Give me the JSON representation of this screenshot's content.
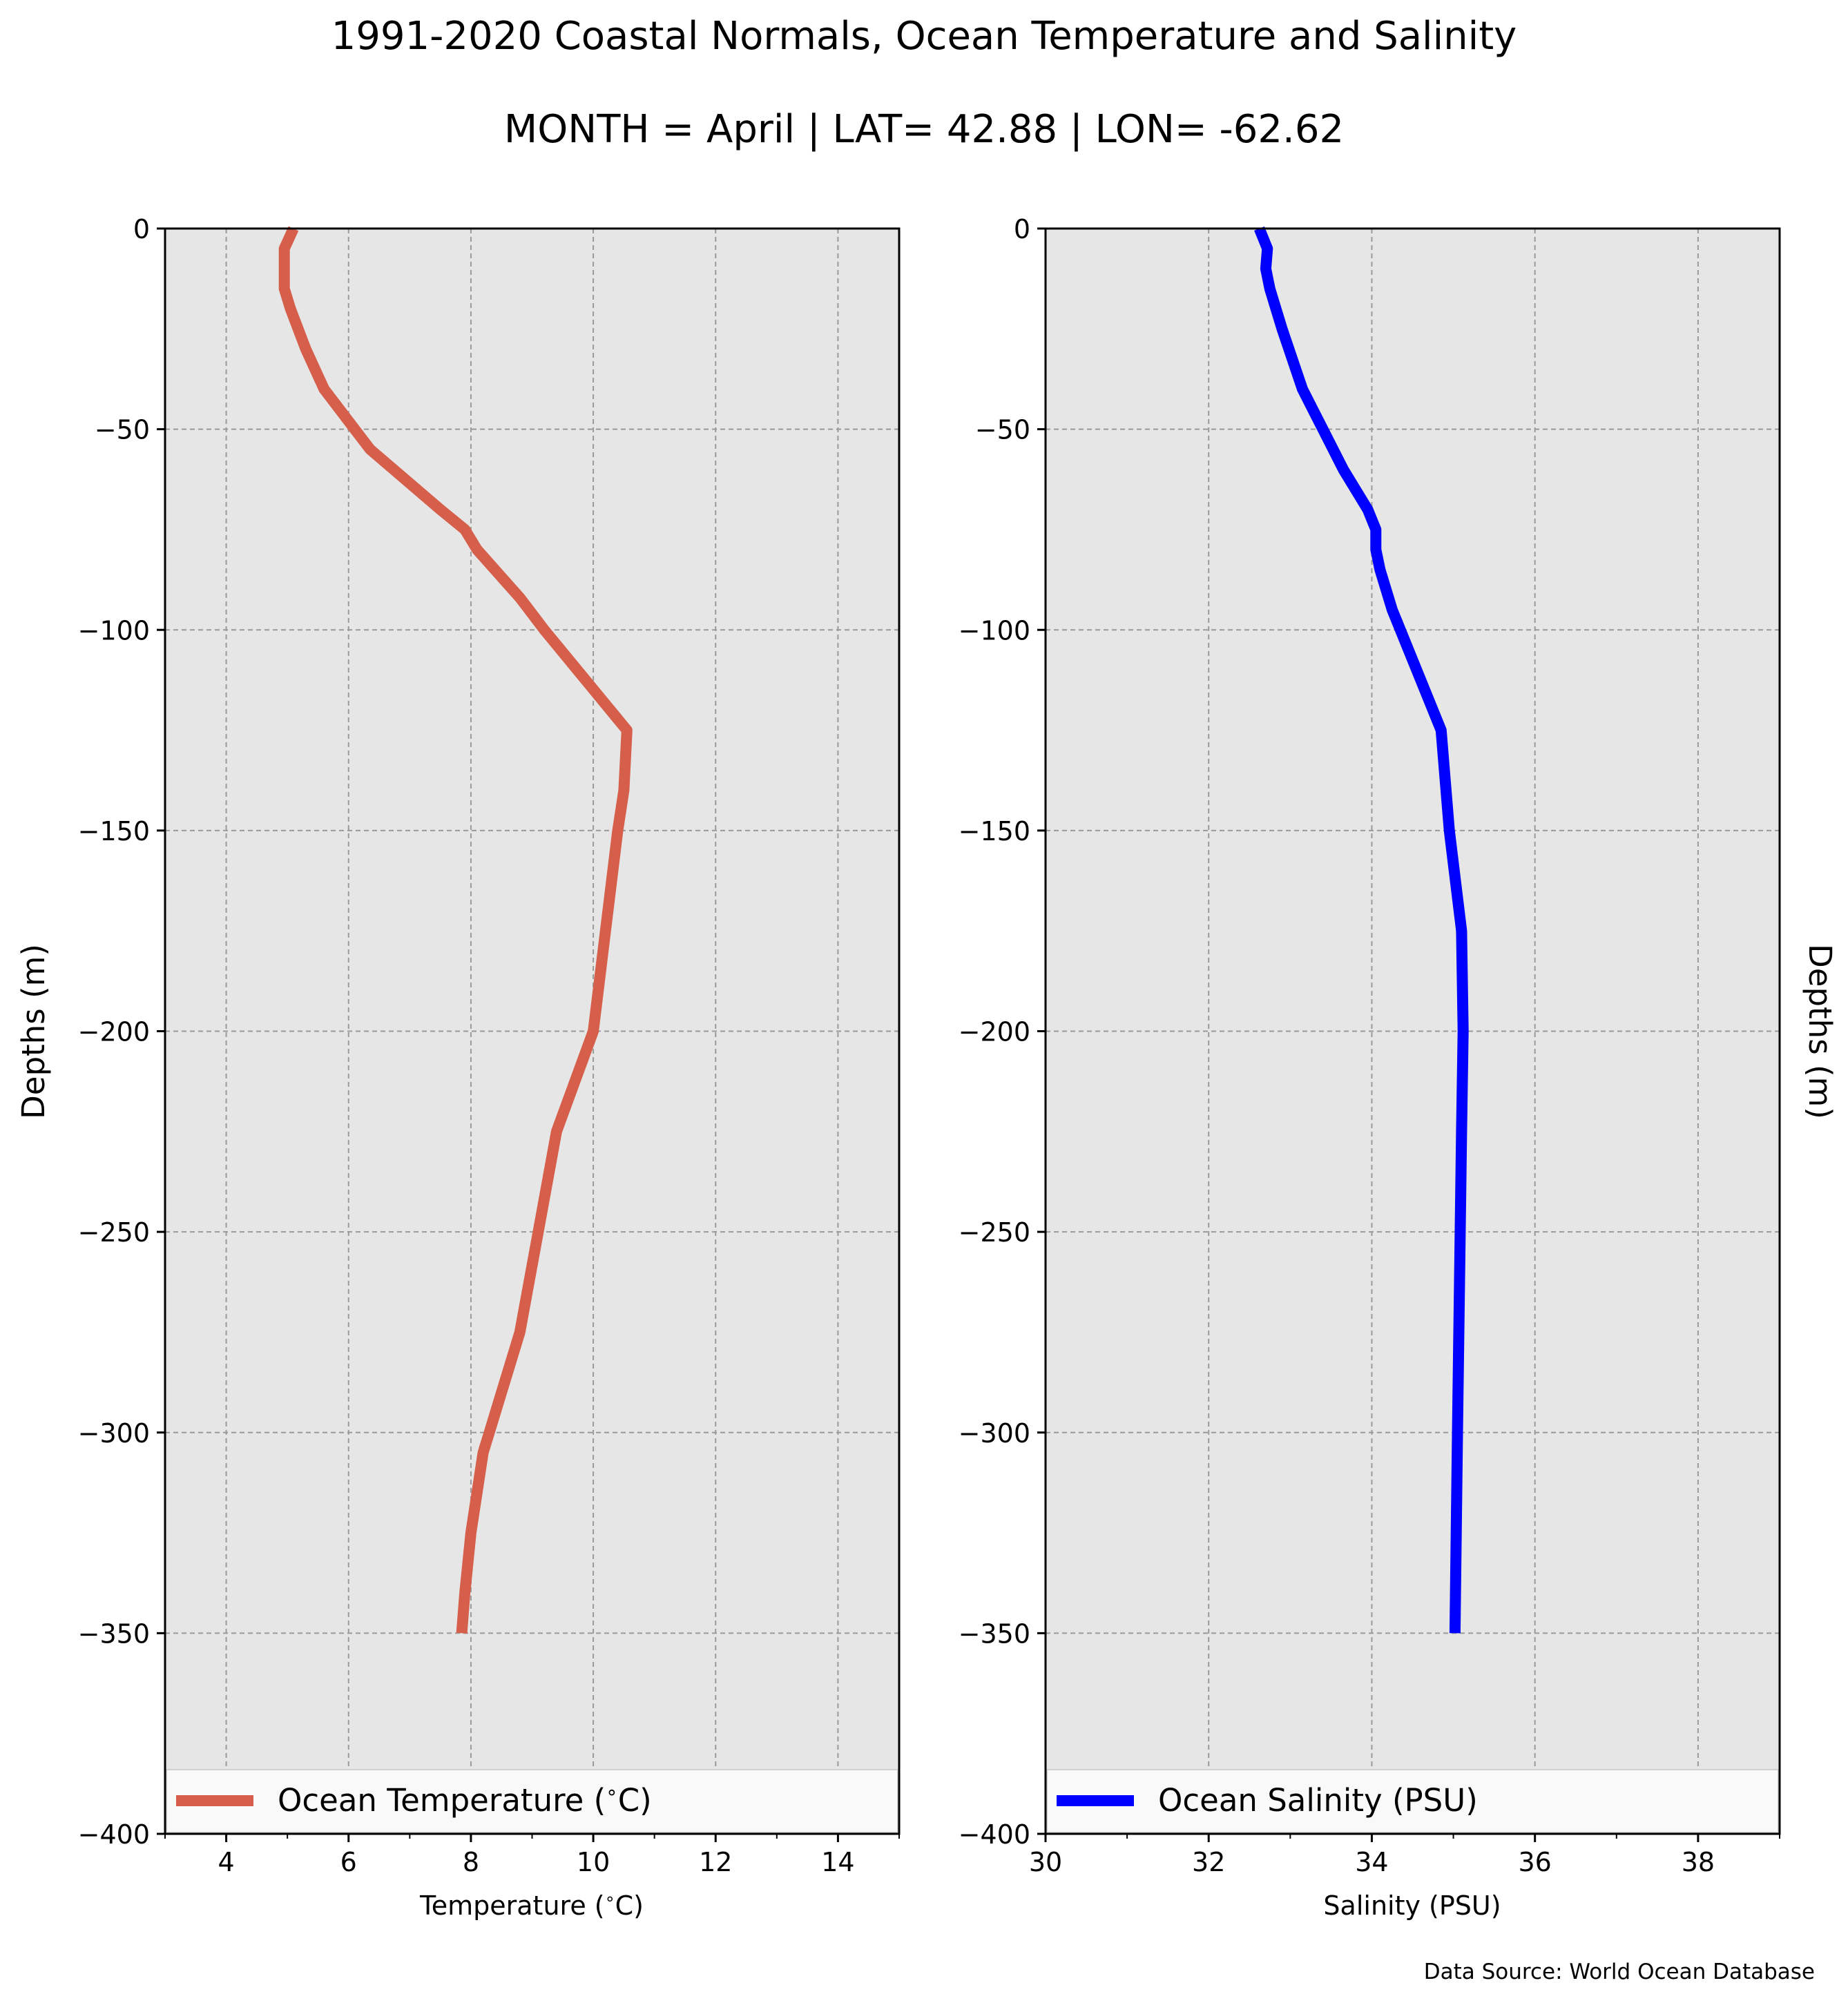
{
  "title": "1991-2020 Coastal Normals, Ocean Temperature and Salinity",
  "subtitle": "MONTH = April | LAT= 42.88 | LON= -62.62",
  "credit": "Data Source: World Ocean Database",
  "colors": {
    "temperature": "#d65f4b",
    "salinity": "#0000ff",
    "plot_background": "#e6e6e6",
    "grid": "#9a9a9a"
  },
  "chart_data": [
    {
      "type": "line",
      "xlabel": "Temperature ($^\\circ$C)",
      "ylabel": "Depths (m)",
      "xlim": [
        3,
        15
      ],
      "ylim": [
        -400,
        0
      ],
      "xticks": [
        4,
        6,
        8,
        10,
        12,
        14
      ],
      "yticks": [
        0,
        -50,
        -100,
        -150,
        -200,
        -250,
        -300,
        -350,
        -400
      ],
      "grid": true,
      "legend_position": "bottom",
      "series": [
        {
          "name": "Ocean Temperature ($^\\circ$C)",
          "color": "#d65f4b",
          "x": [
            5.1,
            4.95,
            4.95,
            5.05,
            5.3,
            5.6,
            6.35,
            7.5,
            7.9,
            8.1,
            8.8,
            8.95,
            9.2,
            10.55,
            10.5,
            10.4,
            10.2,
            10.0,
            9.4,
            9.1,
            8.8,
            8.3,
            8.2,
            8.0,
            7.9,
            7.85
          ],
          "y": [
            0,
            -5,
            -15,
            -20,
            -30,
            -40,
            -55,
            -70,
            -75,
            -80,
            -92,
            -95,
            -100,
            -125,
            -140,
            -150,
            -175,
            -200,
            -225,
            -250,
            -275,
            -300,
            -305,
            -325,
            -340,
            -350
          ]
        }
      ],
      "tick_labels": {
        "x": [
          "4",
          "6",
          "8",
          "10",
          "12",
          "14"
        ],
        "y": [
          "0",
          "−50",
          "−100",
          "−150",
          "−200",
          "−250",
          "−300",
          "−350",
          "−400"
        ]
      }
    },
    {
      "type": "line",
      "xlabel": "Salinity (PSU)",
      "ylabel": "Depths (m)",
      "xlim": [
        30,
        39
      ],
      "ylim": [
        -400,
        0
      ],
      "xticks": [
        30,
        32,
        34,
        36,
        38
      ],
      "yticks": [
        0,
        -50,
        -100,
        -150,
        -200,
        -250,
        -300,
        -350,
        -400
      ],
      "grid": true,
      "legend_position": "bottom",
      "series": [
        {
          "name": "Ocean Salinity (PSU)",
          "color": "#0000ff",
          "x": [
            32.62,
            32.72,
            32.7,
            32.75,
            32.9,
            33.15,
            33.45,
            33.65,
            33.95,
            34.05,
            34.05,
            34.1,
            34.25,
            34.85,
            34.95,
            35.1,
            35.12,
            35.1,
            35.05,
            35.02
          ],
          "y": [
            0,
            -5,
            -10,
            -15,
            -25,
            -40,
            -52,
            -60,
            -70,
            -75,
            -80,
            -85,
            -95,
            -125,
            -150,
            -175,
            -200,
            -225,
            -300,
            -350
          ]
        }
      ],
      "tick_labels": {
        "x": [
          "30",
          "32",
          "34",
          "36",
          "38"
        ],
        "y": [
          "0",
          "−50",
          "−100",
          "−150",
          "−200",
          "−250",
          "−300",
          "−350",
          "−400"
        ]
      }
    }
  ],
  "legend": {
    "temperature_label": "Ocean Temperature (",
    "temperature_unit": "C)",
    "salinity_label": "Ocean Salinity (PSU)"
  },
  "axes": {
    "left_xlabel_prefix": "Temperature (",
    "left_xlabel_suffix": "C)",
    "right_xlabel": "Salinity (PSU)",
    "ylabel": "Depths (m)"
  }
}
